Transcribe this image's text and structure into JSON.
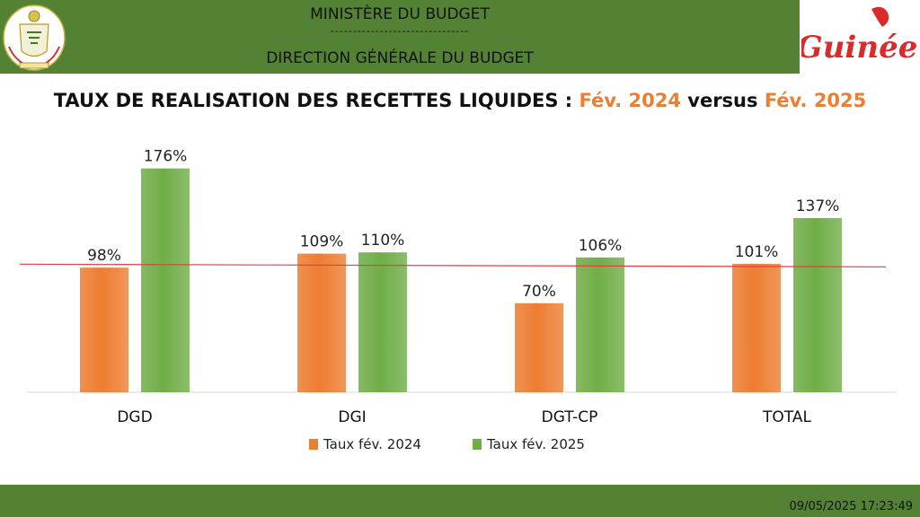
{
  "header": {
    "line1": "MINISTÈRE DU BUDGET",
    "separator": "-------------------------------",
    "line2": "DIRECTION GÉNÉRALE DU BUDGET",
    "logo_text": "Guinée"
  },
  "title": {
    "prefix": "TAUX DE REALISATION DES RECETTES LIQUIDES : ",
    "period1": "Fév. 2024",
    "versus": " versus ",
    "period2": "Fév. 2025"
  },
  "footer": {
    "timestamp": "09/05/2025 17:23:49"
  },
  "colors": {
    "header_green": "#548235",
    "orange": "#ED7D31",
    "green": "#70AD47",
    "red_line": "#E04040",
    "logo_red": "#D92B2B"
  },
  "chart_data": {
    "type": "bar",
    "categories": [
      "DGD",
      "DGI",
      "DGT-CP",
      "TOTAL"
    ],
    "series": [
      {
        "name": "Taux fév. 2024",
        "values": [
          98,
          109,
          70,
          101
        ],
        "labels": [
          "98%",
          "109%",
          "70%",
          "101%"
        ],
        "color": "#ED7D31"
      },
      {
        "name": "Taux fév. 2025",
        "values": [
          176,
          110,
          106,
          137
        ],
        "labels": [
          "176%",
          "110%",
          "106%",
          "137%"
        ],
        "color": "#70AD47"
      }
    ],
    "reference_line": 100,
    "ylim": [
      0,
      180
    ],
    "legend_position": "bottom",
    "grid": false
  }
}
